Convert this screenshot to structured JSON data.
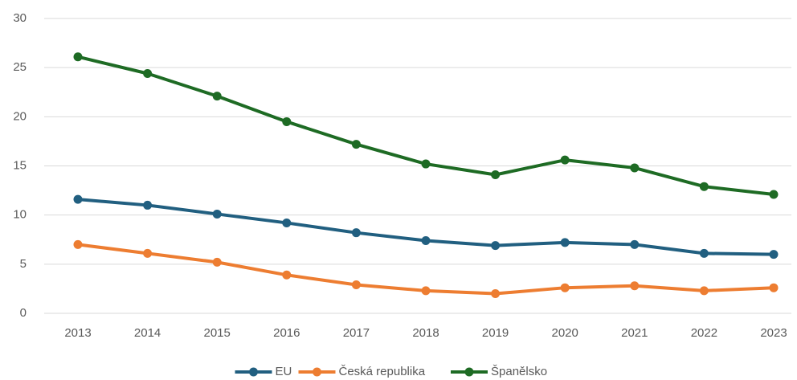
{
  "chart_data": {
    "type": "line",
    "categories": [
      "2013",
      "2014",
      "2015",
      "2016",
      "2017",
      "2018",
      "2019",
      "2020",
      "2021",
      "2022",
      "2023"
    ],
    "series": [
      {
        "name": "EU",
        "color": "#215f80",
        "values": [
          11.6,
          11.0,
          10.1,
          9.2,
          8.2,
          7.4,
          6.9,
          7.2,
          7.0,
          6.1,
          6.0
        ]
      },
      {
        "name": "Česká republika",
        "color": "#ed7d31",
        "values": [
          7.0,
          6.1,
          5.2,
          3.9,
          2.9,
          2.3,
          2.0,
          2.6,
          2.8,
          2.3,
          2.6
        ]
      },
      {
        "name": "Španělsko",
        "color": "#1e6b24",
        "values": [
          26.1,
          24.4,
          22.1,
          19.5,
          17.2,
          15.2,
          14.1,
          15.6,
          14.8,
          12.9,
          12.1
        ]
      }
    ],
    "ylim": [
      0,
      30
    ],
    "yticks": [
      0,
      5,
      10,
      15,
      20,
      25,
      30
    ],
    "grid": true,
    "legend": "bottom"
  }
}
